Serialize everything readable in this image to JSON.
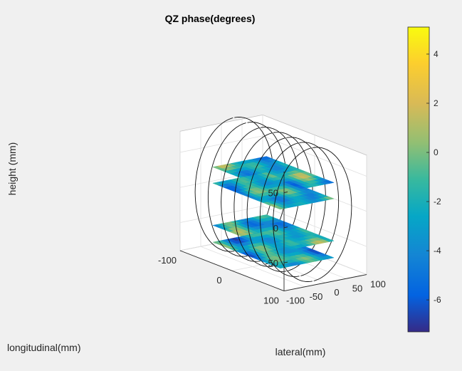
{
  "chart_data": {
    "type": "surface3d",
    "title": "QZ phase(degrees)",
    "xlabel": "lateral(mm)",
    "ylabel": "longitudinal(mm)",
    "zlabel": "height (mm)",
    "xlim": [
      -100,
      100
    ],
    "ylim": [
      -100,
      100
    ],
    "zlim": [
      -90,
      80
    ],
    "x_ticks": [
      {
        "v": 100,
        "label": "100"
      },
      {
        "v": 50,
        "label": "50"
      },
      {
        "v": 0,
        "label": "0"
      },
      {
        "v": -50,
        "label": "-50"
      },
      {
        "v": -100,
        "label": "-100"
      }
    ],
    "y_ticks": [
      {
        "v": 100,
        "label": "100"
      },
      {
        "v": 0,
        "label": "0"
      },
      {
        "v": -100,
        "label": "-100"
      }
    ],
    "z_ticks": [
      {
        "v": 50,
        "label": "50"
      },
      {
        "v": 0,
        "label": "0"
      },
      {
        "v": -50,
        "label": "-50"
      }
    ],
    "planes": [
      {
        "z": 35,
        "xlim": [
          -65,
          65
        ],
        "ylim": [
          -65,
          65
        ]
      },
      {
        "z": 12,
        "xlim": [
          -65,
          65
        ],
        "ylim": [
          -65,
          65
        ]
      },
      {
        "z": -48,
        "xlim": [
          -65,
          65
        ],
        "ylim": [
          -65,
          65
        ]
      },
      {
        "z": -72,
        "xlim": [
          -65,
          65
        ],
        "ylim": [
          -65,
          65
        ]
      }
    ],
    "rings": {
      "radius": 95,
      "y_positions": [
        -75,
        -50,
        -25,
        0,
        25,
        50,
        75
      ]
    },
    "colorbar": {
      "range": [
        -7.3,
        5.1
      ],
      "ticks": [
        {
          "v": 4,
          "label": "4"
        },
        {
          "v": 2,
          "label": "2"
        },
        {
          "v": 0,
          "label": "0"
        },
        {
          "v": -2,
          "label": "-2"
        },
        {
          "v": -4,
          "label": "-4"
        },
        {
          "v": -6,
          "label": "-6"
        }
      ],
      "colormap": "parula"
    },
    "grid": true
  }
}
